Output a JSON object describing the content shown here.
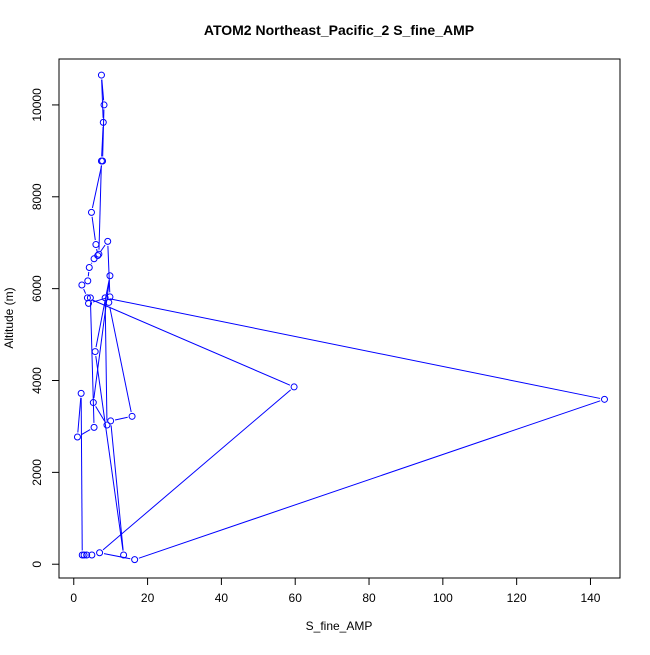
{
  "chart_data": {
    "type": "line",
    "title": "ATOM2 Northeast_Pacific_2 S_fine_AMP",
    "xlabel": "S_fine_AMP",
    "ylabel": "Altitude (m)",
    "xlim": [
      -4,
      148
    ],
    "ylim": [
      -300,
      11000
    ],
    "xticks": [
      0,
      20,
      40,
      60,
      80,
      100,
      120,
      140
    ],
    "yticks": [
      0,
      2000,
      4000,
      6000,
      8000,
      10000
    ],
    "xtick_labels": [
      "0",
      "20",
      "40",
      "60",
      "80",
      "100",
      "120",
      "140"
    ],
    "ytick_labels": [
      "0",
      "2000",
      "4000",
      "6000",
      "8000",
      "10000"
    ],
    "grid": false,
    "legend": "none",
    "series_color": "#0000ff",
    "series": [
      {
        "points": [
          [
            4.9,
            200
          ],
          [
            3.5,
            200
          ],
          [
            2.8,
            200
          ],
          [
            2.3,
            200
          ],
          [
            2.0,
            3720
          ],
          [
            1.0,
            2770
          ],
          [
            5.5,
            2980
          ],
          [
            4.5,
            5800
          ],
          [
            4.0,
            5680
          ],
          [
            9.8,
            5820
          ],
          [
            9.2,
            7030
          ],
          [
            6.5,
            6720
          ],
          [
            6.0,
            6960
          ],
          [
            4.8,
            7660
          ],
          [
            7.8,
            8780
          ],
          [
            8.2,
            10000
          ],
          [
            7.5,
            10650
          ],
          [
            8.0,
            9620
          ],
          [
            7.5,
            8780
          ],
          [
            6.8,
            6750
          ],
          [
            5.5,
            6650
          ],
          [
            4.2,
            6460
          ],
          [
            3.8,
            6170
          ],
          [
            2.2,
            6080
          ],
          [
            3.7,
            5800
          ],
          [
            59.7,
            3860
          ],
          [
            7.0,
            250
          ],
          [
            16.5,
            100
          ],
          [
            143.8,
            3590
          ],
          [
            8.5,
            5800
          ],
          [
            9.0,
            3030
          ],
          [
            5.3,
            3520
          ],
          [
            9.8,
            6280
          ],
          [
            5.8,
            4630
          ],
          [
            13.5,
            200
          ],
          [
            10.0,
            3120
          ],
          [
            15.8,
            3220
          ],
          [
            9.5,
            5700
          ]
        ]
      }
    ]
  }
}
